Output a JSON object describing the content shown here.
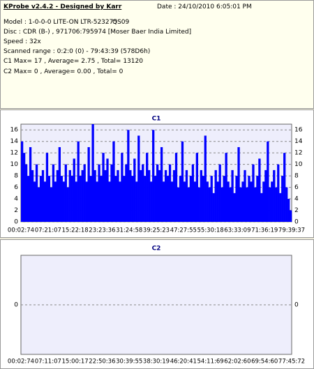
{
  "header": {
    "title": "KProbe v2.4.2 - Designed by Karr",
    "date": "Date : 24/10/2010 6:05:01 PM",
    "model": "Model : 1-0-0-0 LITE-ON LTR-523275",
    "firmware": "QS09",
    "disc": "Disc : CDR (B-) , 971706:795974 [Moser Baer India Limited]",
    "speed": "Speed : 32x",
    "range": "Scanned range : 0:2:0 (0) - 79:43:39 (578D6h)",
    "c1": "C1 Max= 17 , Average= 2.75 , Total= 13120",
    "c2": "C2 Max= 0 , Average= 0.00 , Total= 0"
  },
  "chart_data": [
    {
      "type": "bar",
      "title": "C1",
      "color": "#0000ff",
      "grid": true,
      "xtick_labels": [
        "00:02:74",
        "07:21:07",
        "15:22:18",
        "23:23:36",
        "31:24:58",
        "39:25:23",
        "47:27:55",
        "55:30:18",
        "63:33:09",
        "71:36:19",
        "79:39:37"
      ],
      "ylim": [
        0,
        17
      ],
      "yticks": [
        0,
        2,
        4,
        6,
        8,
        10,
        12,
        14,
        16
      ],
      "values": [
        14,
        12,
        10,
        8,
        13,
        9,
        7,
        10,
        6,
        8,
        9,
        7,
        12,
        8,
        6,
        10,
        7,
        9,
        13,
        8,
        7,
        10,
        6,
        9,
        8,
        11,
        7,
        14,
        8,
        9,
        10,
        7,
        13,
        8,
        17,
        9,
        7,
        10,
        8,
        12,
        9,
        11,
        7,
        10,
        14,
        8,
        9,
        7,
        12,
        8,
        10,
        16,
        9,
        8,
        11,
        7,
        15,
        9,
        10,
        8,
        12,
        9,
        7,
        16,
        8,
        10,
        9,
        13,
        7,
        9,
        8,
        10,
        7,
        9,
        12,
        6,
        8,
        14,
        7,
        9,
        6,
        8,
        10,
        7,
        12,
        6,
        9,
        8,
        15,
        7,
        6,
        8,
        5,
        9,
        7,
        10,
        6,
        8,
        12,
        7,
        6,
        9,
        5,
        8,
        13,
        6,
        7,
        9,
        6,
        8,
        7,
        10,
        6,
        8,
        11,
        5,
        7,
        9,
        14,
        6,
        7,
        9,
        6,
        10,
        5,
        8,
        12,
        6,
        4,
        2
      ]
    },
    {
      "type": "bar",
      "title": "C2",
      "color": "#0000ff",
      "grid": true,
      "xtick_labels": [
        "00:02:74",
        "07:11:07",
        "15:00:17",
        "22:50:36",
        "30:39:55",
        "38:30:19",
        "46:20:41",
        "54:11:69",
        "62:02:60",
        "69:54:60",
        "77:45:72"
      ],
      "ylim": [
        -1,
        1
      ],
      "yticks": [
        0
      ],
      "values": [
        0,
        0,
        0,
        0,
        0,
        0,
        0,
        0,
        0,
        0,
        0,
        0,
        0,
        0,
        0,
        0,
        0,
        0,
        0,
        0,
        0,
        0,
        0,
        0,
        0,
        0,
        0,
        0,
        0,
        0,
        0,
        0,
        0,
        0,
        0,
        0,
        0,
        0,
        0,
        0
      ]
    }
  ]
}
